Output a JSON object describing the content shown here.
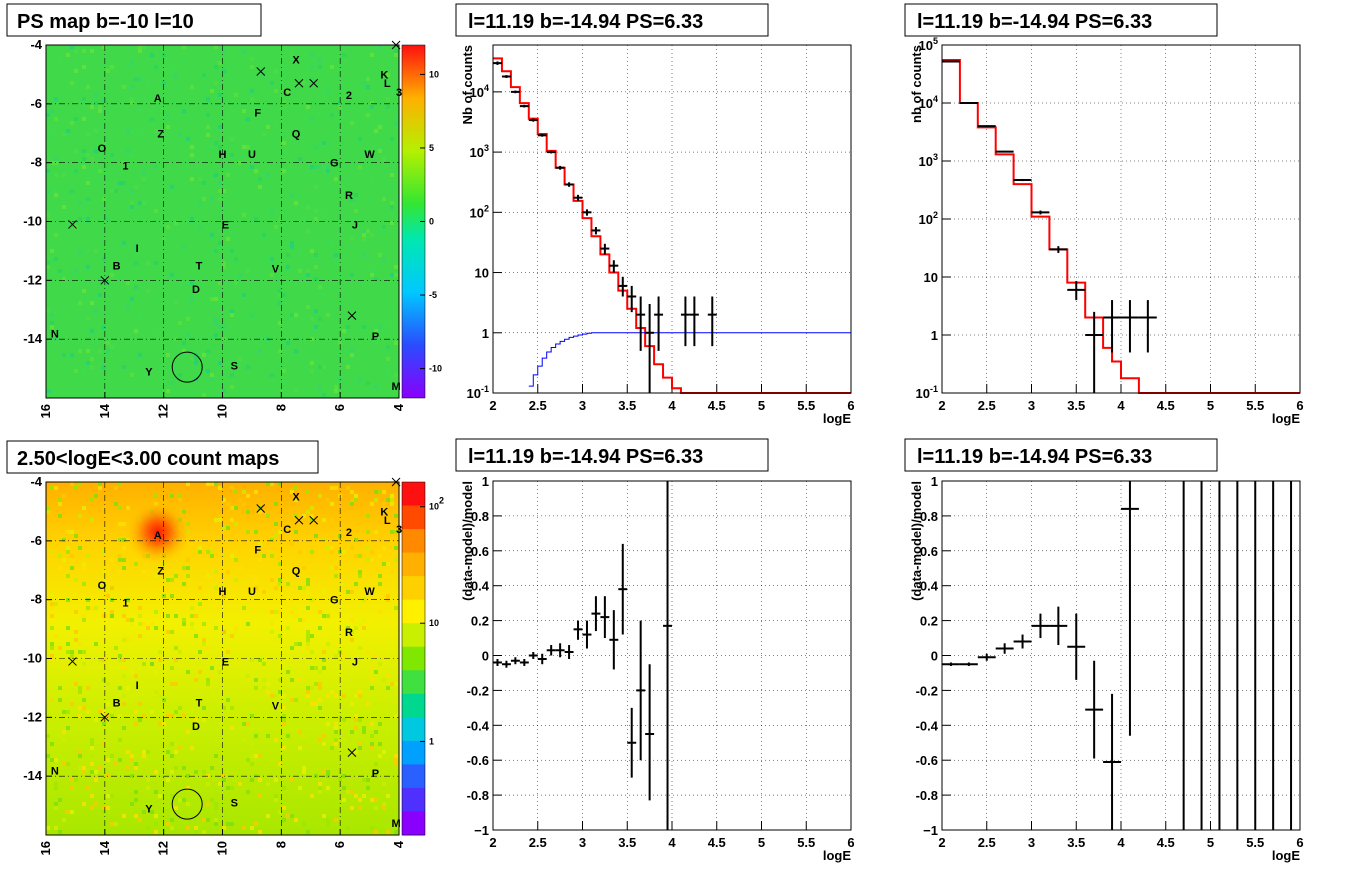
{
  "panels": {
    "ps_map": {
      "title": "PS map b=-10 l=10"
    },
    "count_map": {
      "title": "2.50<logE<3.00 count maps"
    },
    "spec1": {
      "title": "l=11.19 b=-14.94 PS=6.33"
    },
    "spec2": {
      "title": "l=11.19 b=-14.94 PS=6.33"
    },
    "res1": {
      "title": "l=11.19 b=-14.94 PS=6.33"
    },
    "res2": {
      "title": "l=11.19 b=-14.94 PS=6.33"
    }
  },
  "chart_data": [
    {
      "type": "heatmap",
      "title": "PS map b=-10 l=10",
      "x_ticks": [
        "16",
        "14",
        "12",
        "10",
        "8",
        "6",
        "4"
      ],
      "y_ticks": [
        "-4",
        "-6",
        "-8",
        "-10",
        "-12",
        "-14"
      ],
      "xlim": [
        16,
        4
      ],
      "ylim": [
        -16,
        -4
      ],
      "colorbar_ticks": [
        "10",
        "5",
        "0",
        "-5",
        "-10"
      ],
      "colorbar_range": [
        -12,
        12
      ],
      "labels": [
        {
          "t": "X",
          "l": 7.5,
          "b": -4.5
        },
        {
          "t": "K",
          "l": 4.5,
          "b": -5.0
        },
        {
          "t": "L",
          "l": 4.4,
          "b": -5.3
        },
        {
          "t": "3",
          "l": 4.0,
          "b": -5.6
        },
        {
          "t": "A",
          "l": 12.2,
          "b": -5.8
        },
        {
          "t": "C",
          "l": 7.8,
          "b": -5.6
        },
        {
          "t": "2",
          "l": 5.7,
          "b": -5.7
        },
        {
          "t": "F",
          "l": 8.8,
          "b": -6.3
        },
        {
          "t": "Z",
          "l": 12.1,
          "b": -7.0
        },
        {
          "t": "Q",
          "l": 7.5,
          "b": -7.0
        },
        {
          "t": "O",
          "l": 14.1,
          "b": -7.5
        },
        {
          "t": "H",
          "l": 10.0,
          "b": -7.7
        },
        {
          "t": "U",
          "l": 9.0,
          "b": -7.7
        },
        {
          "t": "W",
          "l": 5.0,
          "b": -7.7
        },
        {
          "t": "1",
          "l": 13.3,
          "b": -8.1
        },
        {
          "t": "G",
          "l": 6.2,
          "b": -8.0
        },
        {
          "t": "R",
          "l": 5.7,
          "b": -9.1
        },
        {
          "t": "E",
          "l": 9.9,
          "b": -10.1
        },
        {
          "t": "J",
          "l": 5.5,
          "b": -10.1
        },
        {
          "t": "I",
          "l": 12.9,
          "b": -10.9
        },
        {
          "t": "B",
          "l": 13.6,
          "b": -11.5
        },
        {
          "t": "T",
          "l": 10.8,
          "b": -11.5
        },
        {
          "t": "V",
          "l": 8.2,
          "b": -11.6
        },
        {
          "t": "D",
          "l": 10.9,
          "b": -12.3
        },
        {
          "t": "N",
          "l": 15.7,
          "b": -13.8
        },
        {
          "t": "P",
          "l": 4.8,
          "b": -13.9
        },
        {
          "t": "Y",
          "l": 12.5,
          "b": -15.1
        },
        {
          "t": "S",
          "l": 9.6,
          "b": -14.9
        },
        {
          "t": "M",
          "l": 4.1,
          "b": -15.6
        }
      ],
      "crosses": [
        {
          "l": 8.7,
          "b": -4.9
        },
        {
          "l": 7.4,
          "b": -5.3
        },
        {
          "l": 6.9,
          "b": -5.3
        },
        {
          "l": 4.1,
          "b": -4.0
        },
        {
          "l": 15.1,
          "b": -10.1
        },
        {
          "l": 14.0,
          "b": -12.0
        },
        {
          "l": 5.6,
          "b": -13.2
        }
      ],
      "circle": {
        "l": 11.2,
        "b": -14.95
      }
    },
    {
      "type": "heatmap",
      "title": "2.50<logE<3.00 count maps",
      "x_ticks": [
        "16",
        "14",
        "12",
        "10",
        "8",
        "6",
        "4"
      ],
      "y_ticks": [
        "-4",
        "-6",
        "-8",
        "-10",
        "-12",
        "-14"
      ],
      "colorbar_ticks": [
        "10^2",
        "10",
        "1"
      ],
      "colorbar_scale": "log"
    },
    {
      "type": "line",
      "title": "l=11.19 b=-14.94 PS=6.33",
      "xlabel": "logE",
      "ylabel": "Nb of counts",
      "xlim": [
        2,
        6
      ],
      "ylim": [
        0.1,
        60000
      ],
      "yscale": "log",
      "x_ticks": [
        "2",
        "2.5",
        "3",
        "3.5",
        "4",
        "4.5",
        "5",
        "5.5",
        "6"
      ],
      "y_ticks": [
        "10^{-1}",
        "1",
        "10",
        "10^{2}",
        "10^{3}",
        "10^{4}"
      ],
      "series": [
        {
          "color": "#ff0000",
          "edges": [
            2,
            2.1,
            2.2,
            2.3,
            2.4,
            2.5,
            2.6,
            2.7,
            2.8,
            2.9,
            3.0,
            3.1,
            3.2,
            3.3,
            3.4,
            3.5,
            3.6,
            3.7,
            3.8,
            3.9,
            4.0,
            4.1,
            4.2,
            4.3,
            4.4,
            4.5,
            6.0
          ],
          "values": [
            36000,
            22000,
            12000,
            6500,
            3600,
            2000,
            1050,
            550,
            290,
            155,
            80,
            40,
            20,
            10,
            5,
            2.5,
            1.2,
            0.6,
            0.3,
            0.18,
            0.12,
            0.1,
            0.1,
            0.1,
            0.1,
            0.1
          ]
        },
        {
          "color": "#0000ff",
          "edges": [
            2.4,
            2.45,
            2.5,
            2.55,
            2.6,
            2.65,
            2.7,
            2.75,
            2.8,
            2.85,
            2.9,
            2.95,
            3.0,
            3.05,
            3.1,
            3.2,
            6.0
          ],
          "values": [
            0.13,
            0.2,
            0.28,
            0.38,
            0.48,
            0.57,
            0.65,
            0.72,
            0.78,
            0.84,
            0.88,
            0.92,
            0.95,
            0.98,
            1.0,
            1.0
          ]
        }
      ],
      "points": [
        {
          "x": 2.05,
          "y": 30000,
          "ex": 0.05,
          "ey": [
            28000,
            32000
          ]
        },
        {
          "x": 2.15,
          "y": 18000,
          "ex": 0.05,
          "ey": [
            17000,
            19000
          ]
        },
        {
          "x": 2.25,
          "y": 10000,
          "ex": 0.05,
          "ey": [
            9500,
            10500
          ]
        },
        {
          "x": 2.35,
          "y": 5800,
          "ex": 0.05,
          "ey": [
            5500,
            6100
          ]
        },
        {
          "x": 2.45,
          "y": 3400,
          "ex": 0.05,
          "ey": [
            3200,
            3600
          ]
        },
        {
          "x": 2.55,
          "y": 1900,
          "ex": 0.05,
          "ey": [
            1800,
            2000
          ]
        },
        {
          "x": 2.65,
          "y": 1000,
          "ex": 0.05,
          "ey": [
            950,
            1050
          ]
        },
        {
          "x": 2.75,
          "y": 550,
          "ex": 0.05,
          "ey": [
            510,
            590
          ]
        },
        {
          "x": 2.85,
          "y": 290,
          "ex": 0.05,
          "ey": [
            265,
            315
          ]
        },
        {
          "x": 2.95,
          "y": 175,
          "ex": 0.05,
          "ey": [
            155,
            195
          ]
        },
        {
          "x": 3.05,
          "y": 100,
          "ex": 0.05,
          "ey": [
            88,
            112
          ]
        },
        {
          "x": 3.15,
          "y": 50,
          "ex": 0.05,
          "ey": [
            43,
            57
          ]
        },
        {
          "x": 3.25,
          "y": 25,
          "ex": 0.05,
          "ey": [
            20,
            30
          ]
        },
        {
          "x": 3.35,
          "y": 13,
          "ex": 0.05,
          "ey": [
            10,
            16
          ]
        },
        {
          "x": 3.45,
          "y": 6,
          "ex": 0.05,
          "ey": [
            4,
            8.5
          ]
        },
        {
          "x": 3.55,
          "y": 4,
          "ex": 0.05,
          "ey": [
            2.2,
            6
          ]
        },
        {
          "x": 3.65,
          "y": 2,
          "ex": 0.05,
          "ey": [
            0.5,
            4
          ]
        },
        {
          "x": 3.75,
          "y": 1,
          "ex": 0.05,
          "ey": [
            0.1,
            3
          ]
        },
        {
          "x": 3.85,
          "y": 2,
          "ex": 0.05,
          "ey": [
            0.5,
            4
          ]
        },
        {
          "x": 4.15,
          "y": 2,
          "ex": 0.05,
          "ey": [
            0.6,
            4
          ]
        },
        {
          "x": 4.25,
          "y": 2,
          "ex": 0.05,
          "ey": [
            0.6,
            4
          ]
        },
        {
          "x": 4.45,
          "y": 2,
          "ex": 0.05,
          "ey": [
            0.6,
            4
          ]
        }
      ]
    },
    {
      "type": "line",
      "title": "l=11.19 b=-14.94 PS=6.33",
      "xlabel": "logE",
      "ylabel": "nb of counts",
      "xlim": [
        2,
        6
      ],
      "ylim": [
        0.1,
        100000
      ],
      "yscale": "log",
      "x_ticks": [
        "2",
        "2.5",
        "3",
        "3.5",
        "4",
        "4.5",
        "5",
        "5.5",
        "6"
      ],
      "y_ticks": [
        "10^{-1}",
        "1",
        "10",
        "10^{2}",
        "10^{3}",
        "10^{4}",
        "10^{5}"
      ],
      "series": [
        {
          "color": "#ff0000",
          "edges": [
            2,
            2.2,
            2.4,
            2.6,
            2.8,
            3.0,
            3.2,
            3.4,
            3.6,
            3.8,
            3.9,
            4.0,
            4.2,
            4.4,
            4.6,
            6.0
          ],
          "values": [
            55000,
            10000,
            3800,
            1300,
            400,
            110,
            30,
            8,
            2,
            0.6,
            0.35,
            0.18,
            0.1,
            0.1,
            0.1
          ]
        }
      ],
      "points": [
        {
          "x": 2.1,
          "y": 52000,
          "ex": 0.1,
          "ey": [
            50000,
            54000
          ]
        },
        {
          "x": 2.3,
          "y": 10000,
          "ex": 0.1,
          "ey": [
            9800,
            10200
          ]
        },
        {
          "x": 2.5,
          "y": 4000,
          "ex": 0.1,
          "ey": [
            3900,
            4100
          ]
        },
        {
          "x": 2.7,
          "y": 1450,
          "ex": 0.1,
          "ey": [
            1400,
            1500
          ]
        },
        {
          "x": 2.9,
          "y": 470,
          "ex": 0.1,
          "ey": [
            450,
            490
          ]
        },
        {
          "x": 3.1,
          "y": 130,
          "ex": 0.1,
          "ey": [
            120,
            140
          ]
        },
        {
          "x": 3.3,
          "y": 30,
          "ex": 0.1,
          "ey": [
            26,
            34
          ]
        },
        {
          "x": 3.5,
          "y": 6,
          "ex": 0.1,
          "ey": [
            4,
            8.5
          ]
        },
        {
          "x": 3.7,
          "y": 1,
          "ex": 0.1,
          "ey": [
            0.1,
            2.5
          ]
        },
        {
          "x": 3.9,
          "y": 2,
          "ex": 0.1,
          "ey": [
            0.5,
            4
          ]
        },
        {
          "x": 4.1,
          "y": 2,
          "ex": 0.1,
          "ey": [
            0.5,
            4
          ]
        },
        {
          "x": 4.3,
          "y": 2,
          "ex": 0.1,
          "ey": [
            0.5,
            4
          ]
        }
      ]
    },
    {
      "type": "scatter",
      "title": "l=11.19 b=-14.94 PS=6.33",
      "xlabel": "logE",
      "ylabel": "(data-model)/model",
      "xlim": [
        2,
        6
      ],
      "ylim": [
        -1,
        1
      ],
      "x_ticks": [
        "2",
        "2.5",
        "3",
        "3.5",
        "4",
        "4.5",
        "5",
        "5.5",
        "6"
      ],
      "y_ticks": [
        "-1",
        "-0.8",
        "-0.6",
        "-0.4",
        "-0.2",
        "0",
        "0.2",
        "0.4",
        "0.6",
        "0.8",
        "1"
      ],
      "points": [
        {
          "x": 2.05,
          "y": -0.04,
          "ex": 0.05,
          "ey": [
            -0.06,
            -0.02
          ]
        },
        {
          "x": 2.15,
          "y": -0.05,
          "ex": 0.05,
          "ey": [
            -0.07,
            -0.03
          ]
        },
        {
          "x": 2.25,
          "y": -0.03,
          "ex": 0.05,
          "ey": [
            -0.05,
            -0.01
          ]
        },
        {
          "x": 2.35,
          "y": -0.04,
          "ex": 0.05,
          "ey": [
            -0.06,
            -0.02
          ]
        },
        {
          "x": 2.45,
          "y": 0.0,
          "ex": 0.05,
          "ey": [
            -0.02,
            0.02
          ]
        },
        {
          "x": 2.55,
          "y": -0.02,
          "ex": 0.05,
          "ey": [
            -0.05,
            0.01
          ]
        },
        {
          "x": 2.65,
          "y": 0.03,
          "ex": 0.05,
          "ey": [
            0.0,
            0.06
          ]
        },
        {
          "x": 2.75,
          "y": 0.03,
          "ex": 0.05,
          "ey": [
            -0.01,
            0.07
          ]
        },
        {
          "x": 2.85,
          "y": 0.02,
          "ex": 0.05,
          "ey": [
            -0.02,
            0.06
          ]
        },
        {
          "x": 2.95,
          "y": 0.15,
          "ex": 0.05,
          "ey": [
            0.09,
            0.2
          ]
        },
        {
          "x": 3.05,
          "y": 0.12,
          "ex": 0.05,
          "ey": [
            0.04,
            0.2
          ]
        },
        {
          "x": 3.15,
          "y": 0.24,
          "ex": 0.05,
          "ey": [
            0.14,
            0.34
          ]
        },
        {
          "x": 3.25,
          "y": 0.22,
          "ex": 0.05,
          "ey": [
            0.1,
            0.34
          ]
        },
        {
          "x": 3.35,
          "y": 0.09,
          "ex": 0.05,
          "ey": [
            -0.08,
            0.26
          ]
        },
        {
          "x": 3.45,
          "y": 0.38,
          "ex": 0.05,
          "ey": [
            0.12,
            0.64
          ]
        },
        {
          "x": 3.55,
          "y": -0.5,
          "ex": 0.05,
          "ey": [
            -0.7,
            -0.3
          ]
        },
        {
          "x": 3.65,
          "y": -0.2,
          "ex": 0.05,
          "ey": [
            -0.6,
            0.2
          ]
        },
        {
          "x": 3.75,
          "y": -0.45,
          "ex": 0.05,
          "ey": [
            -0.83,
            -0.05
          ]
        },
        {
          "x": 3.95,
          "y": 0.17,
          "ex": 0.05,
          "ey": [
            -1,
            1
          ]
        }
      ]
    },
    {
      "type": "scatter",
      "title": "l=11.19 b=-14.94 PS=6.33",
      "xlabel": "logE",
      "ylabel": "(data-model)/model",
      "xlim": [
        2,
        6
      ],
      "ylim": [
        -1,
        1
      ],
      "x_ticks": [
        "2",
        "2.5",
        "3",
        "3.5",
        "4",
        "4.5",
        "5",
        "5.5",
        "6"
      ],
      "y_ticks": [
        "-1",
        "-0.8",
        "-0.6",
        "-0.4",
        "-0.2",
        "0",
        "0.2",
        "0.4",
        "0.6",
        "0.8",
        "1"
      ],
      "points": [
        {
          "x": 2.1,
          "y": -0.05,
          "ex": 0.1,
          "ey": [
            -0.06,
            -0.04
          ]
        },
        {
          "x": 2.3,
          "y": -0.05,
          "ex": 0.1,
          "ey": [
            -0.06,
            -0.04
          ]
        },
        {
          "x": 2.5,
          "y": -0.01,
          "ex": 0.1,
          "ey": [
            -0.03,
            0.01
          ]
        },
        {
          "x": 2.7,
          "y": 0.04,
          "ex": 0.1,
          "ey": [
            0.01,
            0.07
          ]
        },
        {
          "x": 2.9,
          "y": 0.08,
          "ex": 0.1,
          "ey": [
            0.04,
            0.12
          ]
        },
        {
          "x": 3.1,
          "y": 0.17,
          "ex": 0.1,
          "ey": [
            0.1,
            0.24
          ]
        },
        {
          "x": 3.3,
          "y": 0.17,
          "ex": 0.1,
          "ey": [
            0.06,
            0.28
          ]
        },
        {
          "x": 3.5,
          "y": 0.05,
          "ex": 0.1,
          "ey": [
            -0.14,
            0.24
          ]
        },
        {
          "x": 3.7,
          "y": -0.31,
          "ex": 0.1,
          "ey": [
            -0.59,
            -0.03
          ]
        },
        {
          "x": 3.9,
          "y": -0.61,
          "ex": 0.1,
          "ey": [
            -1,
            -0.22
          ]
        },
        {
          "x": 4.1,
          "y": 0.84,
          "ex": 0.1,
          "ey": [
            -0.46,
            1
          ]
        },
        {
          "x": 4.7,
          "y": null,
          "ex": 0,
          "ey": [
            -1,
            1
          ]
        },
        {
          "x": 4.9,
          "y": null,
          "ex": 0,
          "ey": [
            -1,
            1
          ]
        },
        {
          "x": 5.1,
          "y": null,
          "ex": 0,
          "ey": [
            -1,
            1
          ]
        },
        {
          "x": 5.3,
          "y": null,
          "ex": 0,
          "ey": [
            -1,
            1
          ]
        },
        {
          "x": 5.5,
          "y": null,
          "ex": 0,
          "ey": [
            -1,
            1
          ]
        },
        {
          "x": 5.7,
          "y": null,
          "ex": 0,
          "ey": [
            -1,
            1
          ]
        },
        {
          "x": 5.9,
          "y": null,
          "ex": 0,
          "ey": [
            -1,
            1
          ]
        }
      ]
    }
  ]
}
